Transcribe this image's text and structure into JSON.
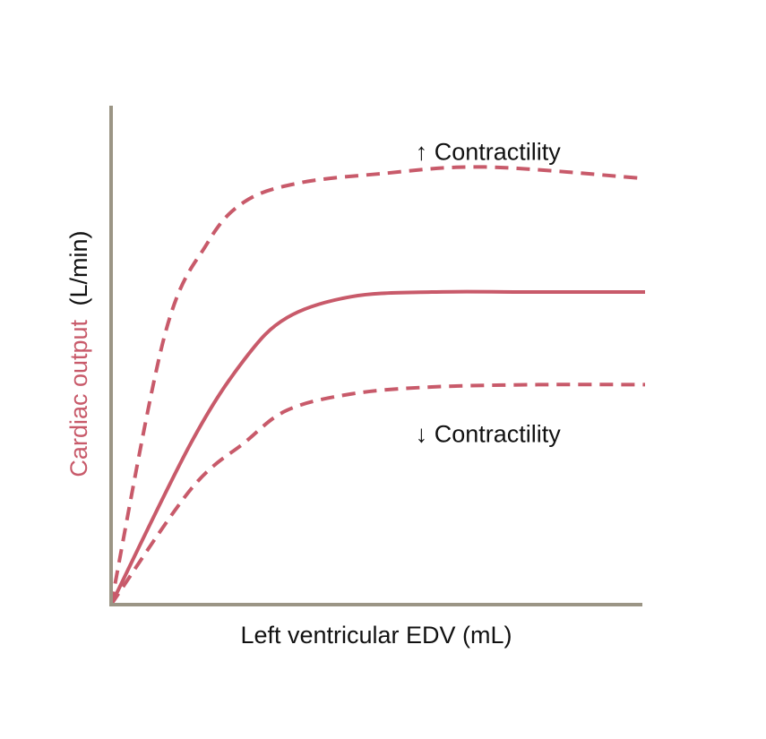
{
  "chart_data": {
    "type": "line",
    "title": "",
    "xlabel": "Left ventricular EDV (mL)",
    "ylabel": {
      "colored_part": "Cardiac output",
      "plain_part": "(L/min)"
    },
    "grid": false,
    "axis_color": "#9b9585",
    "curve_color": "#c85a6a",
    "xlim": [
      0,
      100
    ],
    "ylim": [
      0,
      100
    ],
    "series": [
      {
        "style": "dashed",
        "x": [
          0,
          10,
          18,
          25,
          35,
          50,
          70,
          100
        ],
        "y": [
          0,
          58,
          78,
          87,
          91,
          93,
          94.5,
          92
        ]
      },
      {
        "style": "solid",
        "x": [
          0,
          15,
          25,
          33,
          45,
          60,
          80,
          100
        ],
        "y": [
          0,
          35,
          53,
          62,
          66.5,
          67.5,
          67.5,
          67.5
        ]
      },
      {
        "style": "dashed",
        "x": [
          0,
          15,
          25,
          33,
          45,
          60,
          80,
          100
        ],
        "y": [
          0,
          25,
          35,
          42,
          45.5,
          47,
          47.5,
          47.5
        ]
      }
    ],
    "annotations": [
      {
        "text": "↑ Contractility",
        "x": 57,
        "y": 98
      },
      {
        "text": "↓ Contractility",
        "x": 57,
        "y": 37
      }
    ]
  }
}
